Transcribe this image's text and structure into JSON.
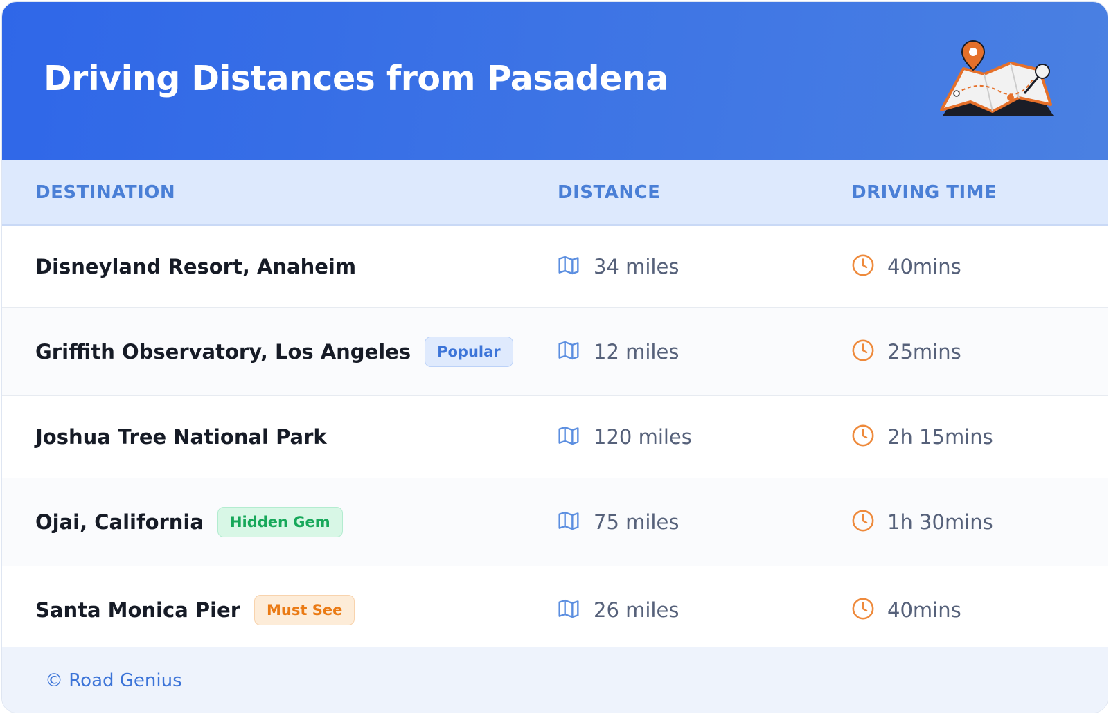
{
  "header": {
    "title": "Driving Distances from Pasadena"
  },
  "table": {
    "columns": [
      "DESTINATION",
      "DISTANCE",
      "DRIVING TIME"
    ],
    "rows": [
      {
        "destination": "Disneyland Resort, Anaheim",
        "distance": "34 miles",
        "time": "40mins"
      },
      {
        "destination": "Griffith Observatory, Los Angeles",
        "badge": "Popular",
        "distance": "12 miles",
        "time": "25mins"
      },
      {
        "destination": "Joshua Tree National Park",
        "distance": "120 miles",
        "time": "2h 15mins"
      },
      {
        "destination": "Ojai, California",
        "badge": "Hidden Gem",
        "distance": "75 miles",
        "time": "1h 30mins"
      },
      {
        "destination": "Santa Monica Pier",
        "badge": "Must See",
        "distance": "26 miles",
        "time": "40mins"
      }
    ]
  },
  "footer": {
    "text": "© Road Genius"
  }
}
